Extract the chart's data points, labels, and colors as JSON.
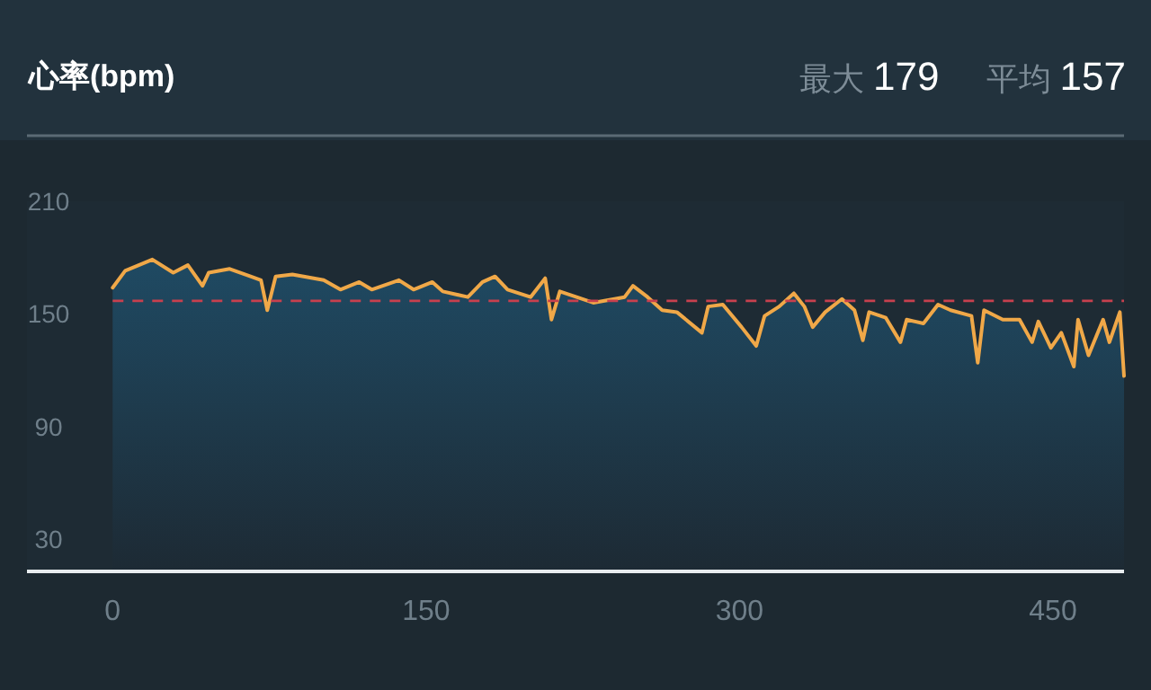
{
  "chart_data": {
    "type": "area",
    "title": "心率(bpm)",
    "annotations": [
      "最大 179",
      "平均 157"
    ],
    "x": [
      0,
      6,
      19,
      29,
      36,
      43,
      46,
      56,
      66,
      71,
      74,
      78,
      86,
      101,
      109,
      118,
      124,
      137,
      144,
      153,
      158,
      170,
      177,
      183,
      189,
      200,
      207,
      210,
      214,
      222,
      230,
      245,
      249,
      256,
      263,
      270,
      282,
      285,
      292,
      301,
      308,
      312,
      319,
      326,
      331,
      335,
      341,
      349,
      355,
      359,
      362,
      370,
      377,
      380,
      388,
      395,
      401,
      411,
      414,
      417,
      426,
      434,
      440,
      443,
      449,
      454,
      460,
      462,
      467,
      474,
      477,
      482,
      484
    ],
    "series": [
      {
        "color": "#f0a848",
        "values": [
          164,
          173,
          179,
          172,
          176,
          165,
          172,
          174,
          170,
          168,
          152,
          170,
          171,
          168,
          163,
          167,
          163,
          168,
          163,
          167,
          162,
          159,
          167,
          170,
          163,
          159,
          169,
          147,
          162,
          159,
          156,
          159,
          165,
          159,
          152,
          151,
          140,
          154,
          155,
          143,
          133,
          149,
          154,
          161,
          154,
          143,
          151,
          158,
          152,
          136,
          151,
          148,
          135,
          147,
          145,
          155,
          152,
          149,
          124,
          152,
          147,
          147,
          135,
          146,
          132,
          140,
          122,
          147,
          128,
          147,
          135,
          151,
          117
        ]
      }
    ],
    "xlim": [
      -41,
      484
    ],
    "ylim": [
      13,
      210
    ],
    "xticks": [
      0,
      150,
      300,
      450
    ],
    "yticks": [
      30,
      90,
      150,
      210
    ],
    "ref_lines": [
      {
        "axis": "y",
        "value": 157,
        "color": "#c8404e",
        "line_style": "dashed"
      }
    ],
    "grid": false
  }
}
